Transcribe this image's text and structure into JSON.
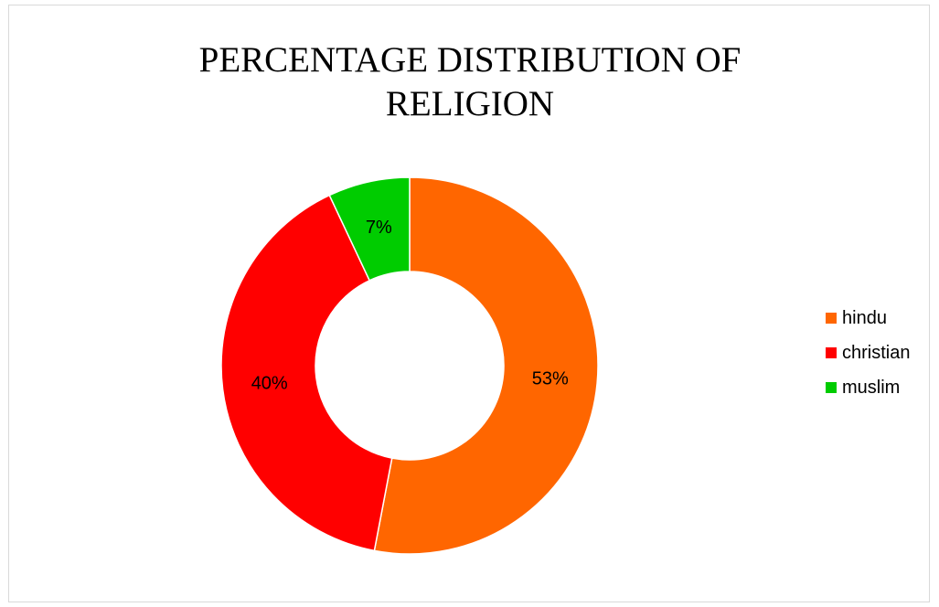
{
  "chart_data": {
    "type": "pie",
    "variant": "donut",
    "title": "PERCENTAGE DISTRIBUTION OF RELIGION",
    "title_lines": [
      "PERCENTAGE DISTRIBUTION OF",
      "RELIGION"
    ],
    "categories": [
      "hindu",
      "christian",
      "muslim"
    ],
    "values": [
      53,
      40,
      7
    ],
    "data_labels": [
      "53%",
      "40%",
      "7%"
    ],
    "colors": [
      "#ff6600",
      "#ff0000",
      "#00cc00"
    ],
    "legend_position": "right"
  }
}
